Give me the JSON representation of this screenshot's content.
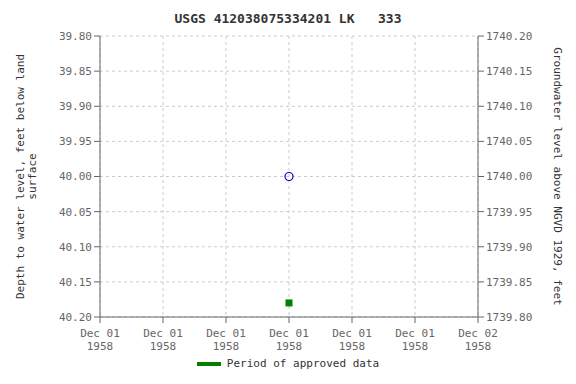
{
  "chart_data": {
    "type": "scatter",
    "title": "USGS 412038075334201 LK   333",
    "ylabel": "Depth to water level, feet below land\nsurface",
    "y2label": "Groundwater level above NGVD 1929, feet",
    "categories": [
      "Dec 01\n1958",
      "Dec 01\n1958",
      "Dec 01\n1958",
      "Dec 01\n1958",
      "Dec 01\n1958",
      "Dec 01\n1958",
      "Dec 02\n1958"
    ],
    "series": [
      {
        "color": "#0000cc",
        "marker": "circle",
        "values": [
          null,
          null,
          null,
          40.0,
          null,
          null,
          null
        ]
      },
      {
        "name": "Period of approved data",
        "color": "#008000",
        "marker": "square",
        "values": [
          null,
          null,
          null,
          40.18,
          null,
          null,
          null
        ]
      }
    ],
    "ylim": [
      40.2,
      39.8
    ],
    "yticks": [
      {
        "value": 39.8,
        "label": "39.80"
      },
      39.85,
      {
        "value": 39.9,
        "label": "39.90"
      },
      39.95,
      {
        "value": 40.0,
        "label": "40.00"
      },
      40.05,
      {
        "value": 40.1,
        "label": "40.10"
      },
      40.15,
      {
        "value": 40.2,
        "label": "40.20"
      }
    ],
    "y2lim": [
      1739.8,
      1740.2
    ],
    "y2ticks": [
      {
        "value": 1740.2,
        "label": "1740.20"
      },
      1740.15,
      {
        "value": 1740.1,
        "label": "1740.10"
      },
      1740.05,
      {
        "value": 1740.0,
        "label": "1740.00"
      },
      1739.95,
      {
        "value": 1739.9,
        "label": "1739.90"
      },
      1739.85,
      {
        "value": 1739.8,
        "label": "1739.80"
      }
    ],
    "grid": true,
    "legend": "bottom"
  }
}
